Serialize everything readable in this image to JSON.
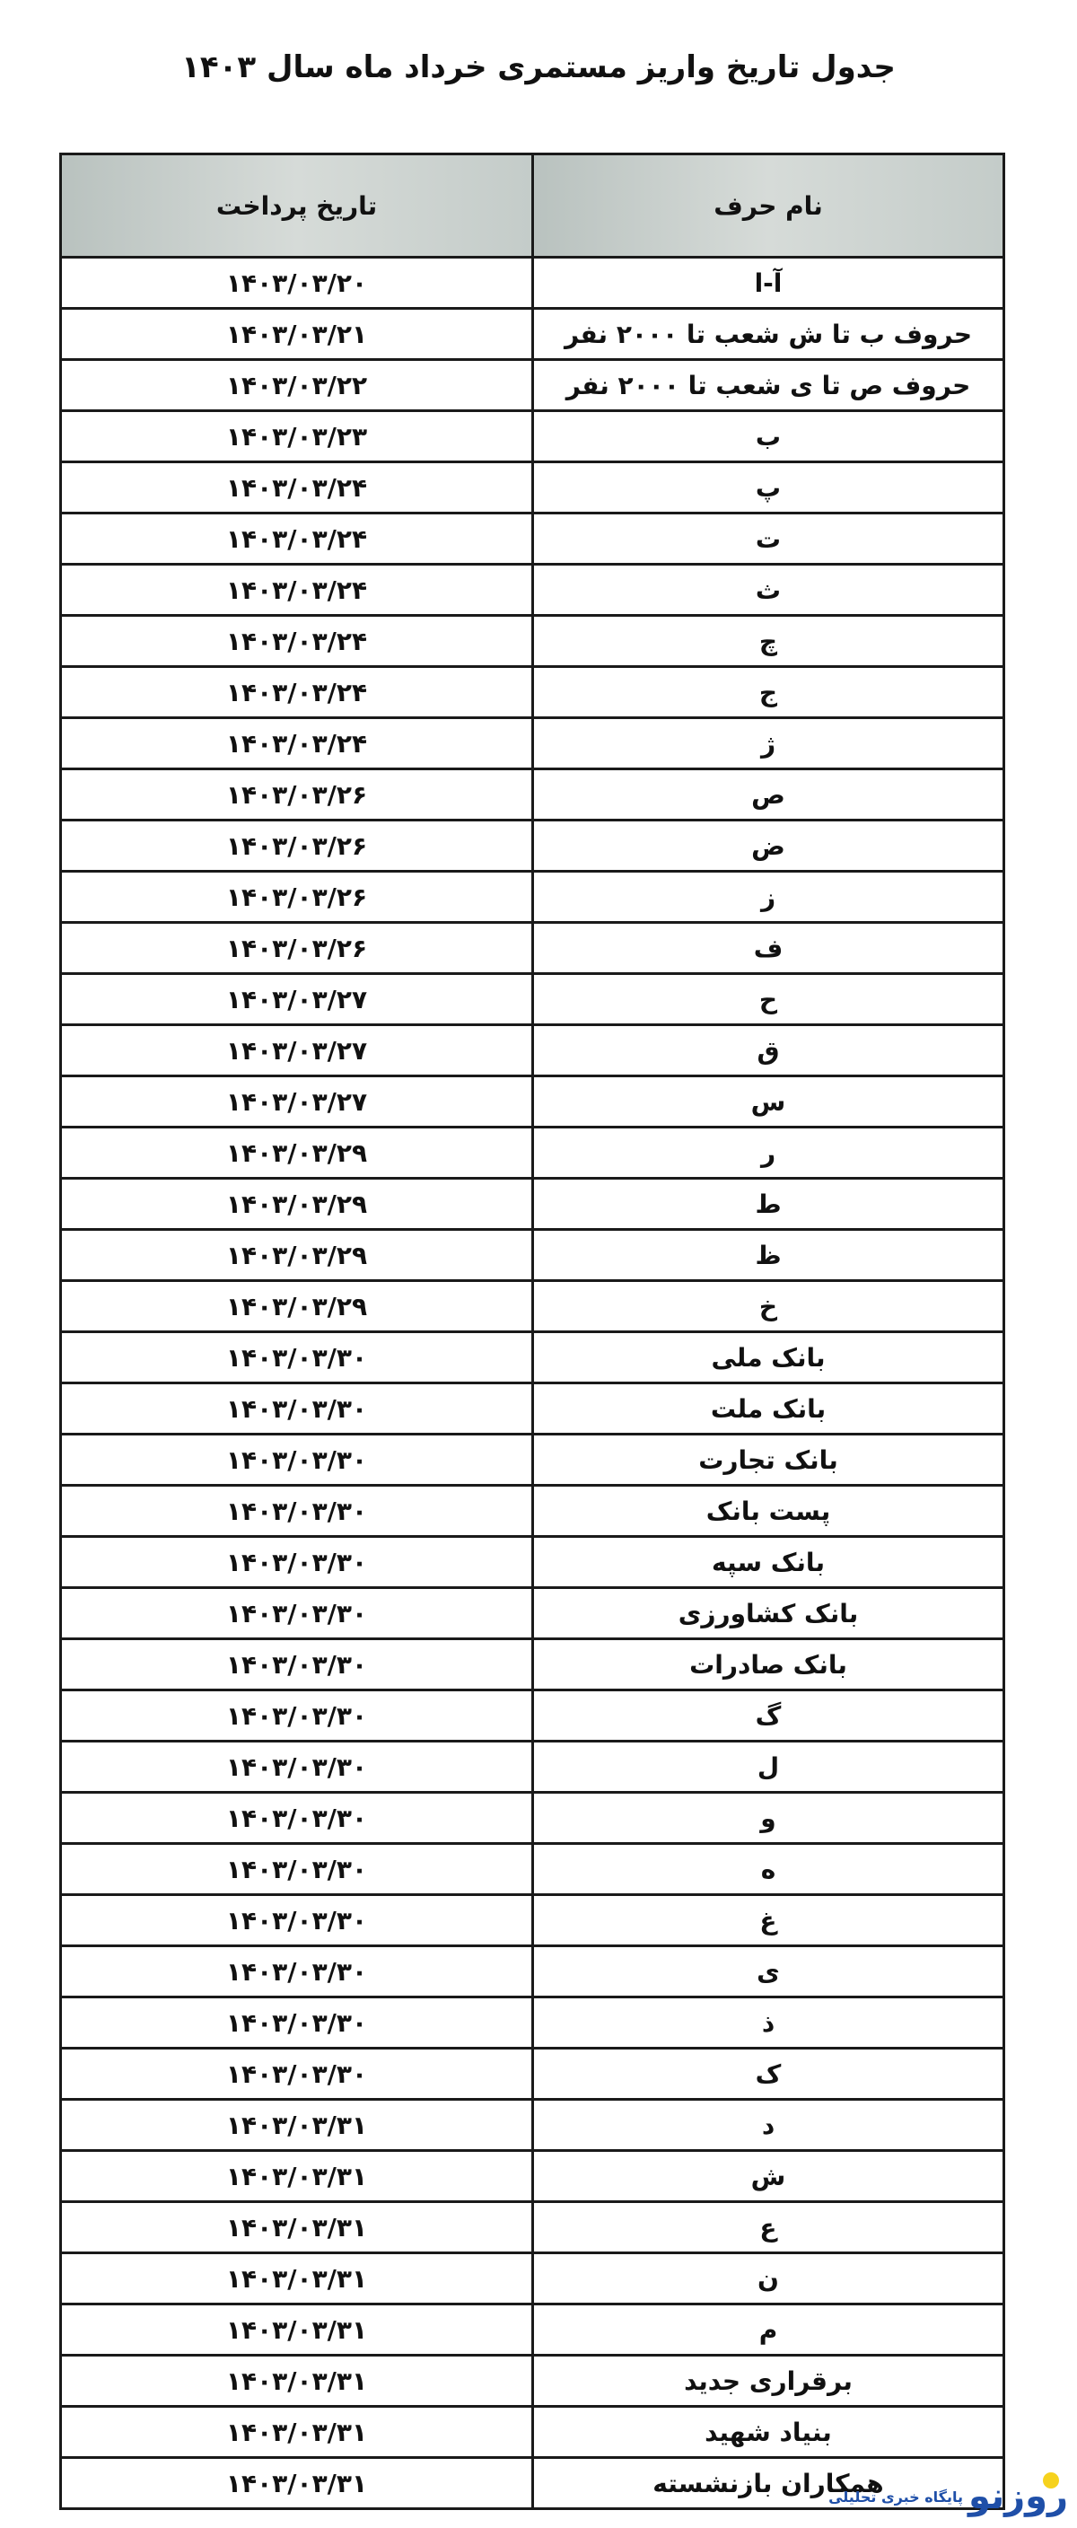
{
  "title": "جدول تاریخ واریز مستمری خرداد ماه سال ۱۴۰۳",
  "headers": {
    "name": "نام حرف",
    "date": "تاریخ پرداخت"
  },
  "rows": [
    {
      "name": "آ-ا",
      "date": "۱۴۰۳/۰۳/۲۰"
    },
    {
      "name": "حروف ب تا ش شعب تا ۲۰۰۰ نفر",
      "date": "۱۴۰۳/۰۳/۲۱"
    },
    {
      "name": "حروف ص تا ی شعب تا ۲۰۰۰ نفر",
      "date": "۱۴۰۳/۰۳/۲۲"
    },
    {
      "name": "ب",
      "date": "۱۴۰۳/۰۳/۲۳"
    },
    {
      "name": "پ",
      "date": "۱۴۰۳/۰۳/۲۴"
    },
    {
      "name": "ت",
      "date": "۱۴۰۳/۰۳/۲۴"
    },
    {
      "name": "ث",
      "date": "۱۴۰۳/۰۳/۲۴"
    },
    {
      "name": "چ",
      "date": "۱۴۰۳/۰۳/۲۴"
    },
    {
      "name": "ج",
      "date": "۱۴۰۳/۰۳/۲۴"
    },
    {
      "name": "ژ",
      "date": "۱۴۰۳/۰۳/۲۴"
    },
    {
      "name": "ص",
      "date": "۱۴۰۳/۰۳/۲۶"
    },
    {
      "name": "ض",
      "date": "۱۴۰۳/۰۳/۲۶"
    },
    {
      "name": "ز",
      "date": "۱۴۰۳/۰۳/۲۶"
    },
    {
      "name": "ف",
      "date": "۱۴۰۳/۰۳/۲۶"
    },
    {
      "name": "ح",
      "date": "۱۴۰۳/۰۳/۲۷"
    },
    {
      "name": "ق",
      "date": "۱۴۰۳/۰۳/۲۷"
    },
    {
      "name": "س",
      "date": "۱۴۰۳/۰۳/۲۷"
    },
    {
      "name": "ر",
      "date": "۱۴۰۳/۰۳/۲۹"
    },
    {
      "name": "ط",
      "date": "۱۴۰۳/۰۳/۲۹"
    },
    {
      "name": "ظ",
      "date": "۱۴۰۳/۰۳/۲۹"
    },
    {
      "name": "خ",
      "date": "۱۴۰۳/۰۳/۲۹"
    },
    {
      "name": "بانک ملی",
      "date": "۱۴۰۳/۰۳/۳۰"
    },
    {
      "name": "بانک ملت",
      "date": "۱۴۰۳/۰۳/۳۰"
    },
    {
      "name": "بانک تجارت",
      "date": "۱۴۰۳/۰۳/۳۰"
    },
    {
      "name": "پست بانک",
      "date": "۱۴۰۳/۰۳/۳۰"
    },
    {
      "name": "بانک سپه",
      "date": "۱۴۰۳/۰۳/۳۰"
    },
    {
      "name": "بانک کشاورزی",
      "date": "۱۴۰۳/۰۳/۳۰"
    },
    {
      "name": "بانک صادرات",
      "date": "۱۴۰۳/۰۳/۳۰"
    },
    {
      "name": "گ",
      "date": "۱۴۰۳/۰۳/۳۰"
    },
    {
      "name": "ل",
      "date": "۱۴۰۳/۰۳/۳۰"
    },
    {
      "name": "و",
      "date": "۱۴۰۳/۰۳/۳۰"
    },
    {
      "name": "ه",
      "date": "۱۴۰۳/۰۳/۳۰"
    },
    {
      "name": "غ",
      "date": "۱۴۰۳/۰۳/۳۰"
    },
    {
      "name": "ی",
      "date": "۱۴۰۳/۰۳/۳۰"
    },
    {
      "name": "ذ",
      "date": "۱۴۰۳/۰۳/۳۰"
    },
    {
      "name": "ک",
      "date": "۱۴۰۳/۰۳/۳۰"
    },
    {
      "name": "د",
      "date": "۱۴۰۳/۰۳/۳۱"
    },
    {
      "name": "ش",
      "date": "۱۴۰۳/۰۳/۳۱"
    },
    {
      "name": "ع",
      "date": "۱۴۰۳/۰۳/۳۱"
    },
    {
      "name": "ن",
      "date": "۱۴۰۳/۰۳/۳۱"
    },
    {
      "name": "م",
      "date": "۱۴۰۳/۰۳/۳۱"
    },
    {
      "name": "برقراری جدید",
      "date": "۱۴۰۳/۰۳/۳۱"
    },
    {
      "name": "بنیاد شهید",
      "date": "۱۴۰۳/۰۳/۳۱"
    },
    {
      "name": "همکاران بازنشسته",
      "date": "۱۴۰۳/۰۳/۳۱"
    }
  ],
  "watermark": {
    "logo": "روزنو",
    "tagline": "پایگاه خبری تحلیلی",
    "brand_color": "#1f4fa8",
    "dot_color": "#f6d21e"
  }
}
